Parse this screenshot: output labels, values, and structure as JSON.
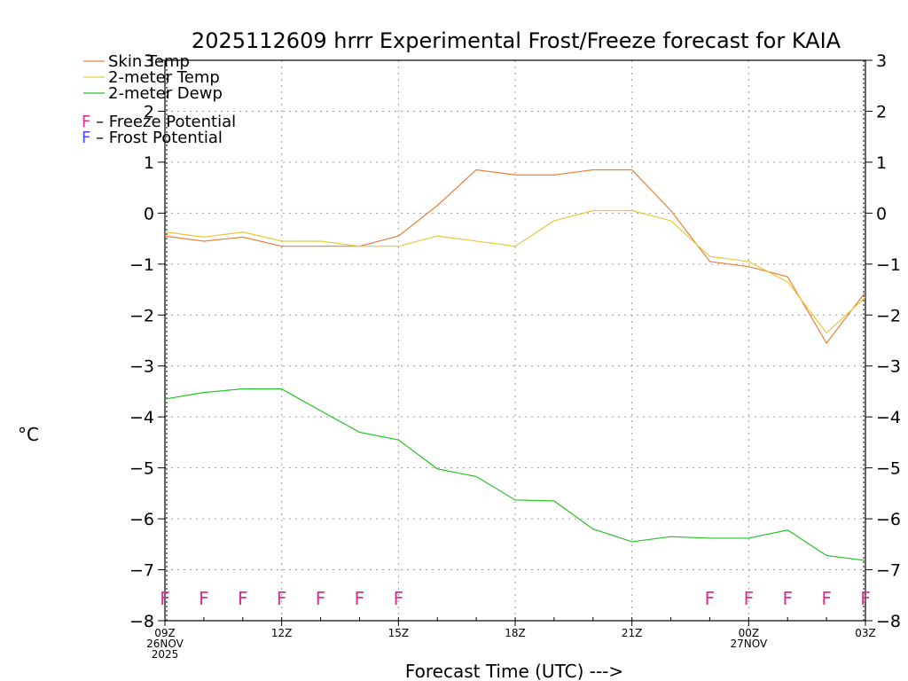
{
  "chart_data": {
    "type": "line",
    "title": "2025112609 hrrr Experimental Frost/Freeze forecast for KAIA",
    "ylabel": "°C",
    "xlabel": "Forecast Time (UTC) --->",
    "ylim": [
      -8,
      3
    ],
    "yticks": [
      3,
      2,
      1,
      0,
      -1,
      -2,
      -3,
      -4,
      -5,
      -6,
      -7,
      -8
    ],
    "ytick_labels": [
      "3",
      "2",
      "1",
      "0",
      "−1",
      "−2",
      "−3",
      "−4",
      "−5",
      "−6",
      "−7",
      "−8"
    ],
    "x_hours": [
      0,
      1,
      2,
      3,
      4,
      5,
      6,
      7,
      8,
      9,
      10,
      11,
      12,
      13,
      14,
      15,
      16,
      17,
      18
    ],
    "x_ticks": [
      {
        "hour": 0,
        "lines": [
          "09Z",
          "26NOV",
          "2025"
        ]
      },
      {
        "hour": 3,
        "lines": [
          "12Z"
        ]
      },
      {
        "hour": 6,
        "lines": [
          "15Z"
        ]
      },
      {
        "hour": 9,
        "lines": [
          "18Z"
        ]
      },
      {
        "hour": 12,
        "lines": [
          "21Z"
        ]
      },
      {
        "hour": 15,
        "lines": [
          "00Z",
          "27NOV"
        ]
      },
      {
        "hour": 18,
        "lines": [
          "03Z"
        ]
      }
    ],
    "series": [
      {
        "name": "Skin Temp",
        "color": "#e8803a",
        "values": [
          -0.45,
          -0.55,
          -0.47,
          -0.65,
          -0.65,
          -0.65,
          -0.45,
          0.15,
          0.85,
          0.75,
          0.75,
          0.85,
          0.85,
          0.05,
          -0.95,
          -1.05,
          -1.25,
          -2.55,
          -1.55
        ]
      },
      {
        "name": "2-meter Temp",
        "color": "#e8c83a",
        "values": [
          -0.37,
          -0.47,
          -0.37,
          -0.55,
          -0.55,
          -0.65,
          -0.65,
          -0.45,
          -0.55,
          -0.65,
          -0.15,
          0.05,
          0.05,
          -0.15,
          -0.85,
          -0.95,
          -1.35,
          -2.35,
          -1.65
        ]
      },
      {
        "name": "2-meter Dewp",
        "color": "#22c322",
        "values": [
          -3.65,
          -3.52,
          -3.45,
          -3.45,
          -3.88,
          -4.3,
          -4.45,
          -5.02,
          -5.17,
          -5.63,
          -5.65,
          -6.2,
          -6.45,
          -6.35,
          -6.38,
          -6.38,
          -6.22,
          -6.72,
          -6.82
        ]
      }
    ],
    "legend_position": "top-left",
    "flag_legend": [
      {
        "marker": "F",
        "label": " – Freeze Potential",
        "color": "#dd2f8b"
      },
      {
        "marker": "F",
        "label": " – Frost Potential",
        "color": "#4d4dff"
      }
    ],
    "freeze_flags": {
      "marker": "F",
      "color": "#dd2f8b",
      "level": -7.55,
      "hours": [
        0,
        1,
        2,
        3,
        4,
        5,
        6,
        14,
        15,
        16,
        17,
        18
      ]
    }
  }
}
